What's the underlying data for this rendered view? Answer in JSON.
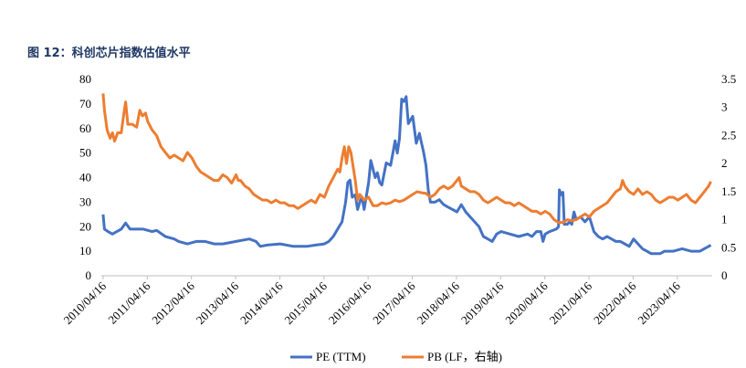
{
  "figure_caption": "图 12：科创芯片指数估值水平",
  "chart_data": {
    "type": "line",
    "y_left": {
      "ylim": [
        0,
        80
      ],
      "ticks": [
        "0",
        "10",
        "20",
        "30",
        "40",
        "50",
        "60",
        "70",
        "80"
      ]
    },
    "y_right": {
      "ylim": [
        0,
        3.5
      ],
      "ticks": [
        "0",
        "0.5",
        "1",
        "1.5",
        "2",
        "2.5",
        "3",
        "3.5"
      ]
    },
    "x_range": [
      2010.25,
      2024.08
    ],
    "x_ticks": [
      "2010/04/16",
      "2011/04/16",
      "2012/04/16",
      "2013/04/16",
      "2014/04/16",
      "2015/04/16",
      "2016/04/16",
      "2017/04/16",
      "2018/04/16",
      "2019/04/16",
      "2020/04/16",
      "2021/04/16",
      "2022/04/16",
      "2023/04/16"
    ],
    "colors": {
      "pe": "#4472c4",
      "pb": "#ed7d31"
    },
    "legend": [
      "PE (TTM)",
      "PB (LF，右轴)"
    ],
    "series": [
      {
        "name": "PE (TTM)",
        "axis": "left",
        "points": [
          [
            2010.29,
            25
          ],
          [
            2010.32,
            19
          ],
          [
            2010.4,
            18
          ],
          [
            2010.5,
            17
          ],
          [
            2010.6,
            18
          ],
          [
            2010.7,
            19
          ],
          [
            2010.8,
            21.5
          ],
          [
            2010.9,
            19
          ],
          [
            2011.0,
            19
          ],
          [
            2011.2,
            19
          ],
          [
            2011.4,
            18
          ],
          [
            2011.5,
            18.5
          ],
          [
            2011.7,
            16
          ],
          [
            2011.9,
            15
          ],
          [
            2012.0,
            14
          ],
          [
            2012.2,
            13
          ],
          [
            2012.4,
            14
          ],
          [
            2012.6,
            14
          ],
          [
            2012.8,
            13
          ],
          [
            2013.0,
            13
          ],
          [
            2013.3,
            14
          ],
          [
            2013.6,
            15
          ],
          [
            2013.75,
            14
          ],
          [
            2013.85,
            12
          ],
          [
            2014.0,
            12.5
          ],
          [
            2014.3,
            13
          ],
          [
            2014.6,
            12
          ],
          [
            2014.9,
            12
          ],
          [
            2015.1,
            12.5
          ],
          [
            2015.3,
            13
          ],
          [
            2015.4,
            14
          ],
          [
            2015.5,
            16
          ],
          [
            2015.6,
            19
          ],
          [
            2015.7,
            22
          ],
          [
            2015.78,
            30
          ],
          [
            2015.83,
            38
          ],
          [
            2015.88,
            39
          ],
          [
            2015.93,
            32
          ],
          [
            2016.0,
            33
          ],
          [
            2016.05,
            27
          ],
          [
            2016.1,
            30
          ],
          [
            2016.15,
            32
          ],
          [
            2016.2,
            27
          ],
          [
            2016.3,
            38
          ],
          [
            2016.35,
            47
          ],
          [
            2016.45,
            40
          ],
          [
            2016.5,
            42
          ],
          [
            2016.55,
            38
          ],
          [
            2016.6,
            37
          ],
          [
            2016.7,
            46
          ],
          [
            2016.8,
            45
          ],
          [
            2016.9,
            55
          ],
          [
            2016.95,
            50
          ],
          [
            2017.0,
            56
          ],
          [
            2017.05,
            72
          ],
          [
            2017.1,
            71
          ],
          [
            2017.15,
            73
          ],
          [
            2017.2,
            62
          ],
          [
            2017.3,
            65
          ],
          [
            2017.38,
            54
          ],
          [
            2017.45,
            58
          ],
          [
            2017.55,
            50
          ],
          [
            2017.6,
            45
          ],
          [
            2017.65,
            35
          ],
          [
            2017.7,
            30
          ],
          [
            2017.8,
            30
          ],
          [
            2017.9,
            31
          ],
          [
            2018.0,
            29
          ],
          [
            2018.1,
            28
          ],
          [
            2018.2,
            27
          ],
          [
            2018.3,
            26
          ],
          [
            2018.4,
            29
          ],
          [
            2018.5,
            26
          ],
          [
            2018.6,
            24
          ],
          [
            2018.7,
            22
          ],
          [
            2018.8,
            20
          ],
          [
            2018.9,
            16
          ],
          [
            2019.0,
            15
          ],
          [
            2019.1,
            14
          ],
          [
            2019.2,
            17
          ],
          [
            2019.3,
            18
          ],
          [
            2019.5,
            17
          ],
          [
            2019.7,
            16
          ],
          [
            2019.9,
            17
          ],
          [
            2020.0,
            16
          ],
          [
            2020.1,
            18
          ],
          [
            2020.2,
            18
          ],
          [
            2020.25,
            14
          ],
          [
            2020.3,
            17
          ],
          [
            2020.4,
            18
          ],
          [
            2020.55,
            19
          ],
          [
            2020.6,
            20
          ],
          [
            2020.62,
            35
          ],
          [
            2020.66,
            33
          ],
          [
            2020.7,
            34
          ],
          [
            2020.73,
            21
          ],
          [
            2020.8,
            21
          ],
          [
            2020.85,
            22
          ],
          [
            2020.9,
            21
          ],
          [
            2020.95,
            26
          ],
          [
            2021.0,
            23
          ],
          [
            2021.1,
            24
          ],
          [
            2021.2,
            22
          ],
          [
            2021.3,
            24
          ],
          [
            2021.4,
            18
          ],
          [
            2021.5,
            16
          ],
          [
            2021.6,
            15
          ],
          [
            2021.7,
            16
          ],
          [
            2021.8,
            15
          ],
          [
            2021.9,
            14
          ],
          [
            2022.0,
            14
          ],
          [
            2022.1,
            13
          ],
          [
            2022.2,
            12
          ],
          [
            2022.3,
            15
          ],
          [
            2022.4,
            13
          ],
          [
            2022.5,
            11
          ],
          [
            2022.6,
            10
          ],
          [
            2022.7,
            9
          ],
          [
            2022.8,
            9
          ],
          [
            2022.9,
            9
          ],
          [
            2023.0,
            10
          ],
          [
            2023.2,
            10
          ],
          [
            2023.4,
            11
          ],
          [
            2023.6,
            10
          ],
          [
            2023.8,
            10
          ],
          [
            2023.9,
            11
          ],
          [
            2024.0,
            12
          ],
          [
            2024.05,
            12.5
          ]
        ]
      },
      {
        "name": "PB (LF，右轴)",
        "axis": "right",
        "points": [
          [
            2010.29,
            3.25
          ],
          [
            2010.32,
            2.95
          ],
          [
            2010.38,
            2.6
          ],
          [
            2010.45,
            2.45
          ],
          [
            2010.5,
            2.55
          ],
          [
            2010.55,
            2.4
          ],
          [
            2010.62,
            2.55
          ],
          [
            2010.7,
            2.55
          ],
          [
            2010.76,
            2.9
          ],
          [
            2010.8,
            3.1
          ],
          [
            2010.85,
            2.7
          ],
          [
            2010.95,
            2.7
          ],
          [
            2011.05,
            2.65
          ],
          [
            2011.12,
            2.95
          ],
          [
            2011.18,
            2.85
          ],
          [
            2011.25,
            2.9
          ],
          [
            2011.3,
            2.75
          ],
          [
            2011.4,
            2.6
          ],
          [
            2011.5,
            2.5
          ],
          [
            2011.6,
            2.3
          ],
          [
            2011.7,
            2.2
          ],
          [
            2011.8,
            2.1
          ],
          [
            2011.9,
            2.15
          ],
          [
            2012.0,
            2.1
          ],
          [
            2012.1,
            2.05
          ],
          [
            2012.2,
            2.2
          ],
          [
            2012.3,
            2.1
          ],
          [
            2012.4,
            1.95
          ],
          [
            2012.5,
            1.85
          ],
          [
            2012.6,
            1.8
          ],
          [
            2012.7,
            1.75
          ],
          [
            2012.8,
            1.7
          ],
          [
            2012.9,
            1.7
          ],
          [
            2013.0,
            1.8
          ],
          [
            2013.1,
            1.75
          ],
          [
            2013.2,
            1.65
          ],
          [
            2013.3,
            1.8
          ],
          [
            2013.35,
            1.7
          ],
          [
            2013.4,
            1.7
          ],
          [
            2013.5,
            1.6
          ],
          [
            2013.6,
            1.55
          ],
          [
            2013.7,
            1.45
          ],
          [
            2013.8,
            1.4
          ],
          [
            2013.9,
            1.35
          ],
          [
            2014.0,
            1.35
          ],
          [
            2014.1,
            1.3
          ],
          [
            2014.2,
            1.35
          ],
          [
            2014.3,
            1.3
          ],
          [
            2014.4,
            1.3
          ],
          [
            2014.5,
            1.25
          ],
          [
            2014.6,
            1.25
          ],
          [
            2014.7,
            1.2
          ],
          [
            2014.8,
            1.25
          ],
          [
            2014.9,
            1.3
          ],
          [
            2015.0,
            1.35
          ],
          [
            2015.1,
            1.3
          ],
          [
            2015.2,
            1.45
          ],
          [
            2015.3,
            1.4
          ],
          [
            2015.4,
            1.6
          ],
          [
            2015.5,
            1.75
          ],
          [
            2015.6,
            1.9
          ],
          [
            2015.65,
            1.85
          ],
          [
            2015.7,
            2.1
          ],
          [
            2015.75,
            2.3
          ],
          [
            2015.8,
            2.0
          ],
          [
            2015.85,
            2.3
          ],
          [
            2015.9,
            2.2
          ],
          [
            2015.95,
            1.95
          ],
          [
            2016.0,
            1.7
          ],
          [
            2016.05,
            1.35
          ],
          [
            2016.1,
            1.45
          ],
          [
            2016.2,
            1.35
          ],
          [
            2016.3,
            1.4
          ],
          [
            2016.4,
            1.25
          ],
          [
            2016.5,
            1.25
          ],
          [
            2016.6,
            1.3
          ],
          [
            2016.7,
            1.28
          ],
          [
            2016.8,
            1.3
          ],
          [
            2016.9,
            1.35
          ],
          [
            2017.0,
            1.32
          ],
          [
            2017.1,
            1.35
          ],
          [
            2017.2,
            1.4
          ],
          [
            2017.3,
            1.45
          ],
          [
            2017.4,
            1.5
          ],
          [
            2017.5,
            1.48
          ],
          [
            2017.6,
            1.47
          ],
          [
            2017.7,
            1.4
          ],
          [
            2017.8,
            1.45
          ],
          [
            2017.9,
            1.55
          ],
          [
            2018.0,
            1.6
          ],
          [
            2018.1,
            1.55
          ],
          [
            2018.2,
            1.6
          ],
          [
            2018.3,
            1.7
          ],
          [
            2018.35,
            1.75
          ],
          [
            2018.4,
            1.6
          ],
          [
            2018.5,
            1.55
          ],
          [
            2018.6,
            1.5
          ],
          [
            2018.7,
            1.5
          ],
          [
            2018.8,
            1.45
          ],
          [
            2018.9,
            1.35
          ],
          [
            2019.0,
            1.3
          ],
          [
            2019.1,
            1.35
          ],
          [
            2019.2,
            1.4
          ],
          [
            2019.3,
            1.35
          ],
          [
            2019.4,
            1.3
          ],
          [
            2019.5,
            1.3
          ],
          [
            2019.6,
            1.25
          ],
          [
            2019.7,
            1.3
          ],
          [
            2019.8,
            1.25
          ],
          [
            2019.9,
            1.2
          ],
          [
            2020.0,
            1.15
          ],
          [
            2020.1,
            1.15
          ],
          [
            2020.2,
            1.1
          ],
          [
            2020.3,
            1.15
          ],
          [
            2020.4,
            1.1
          ],
          [
            2020.5,
            1.0
          ],
          [
            2020.6,
            0.95
          ],
          [
            2020.7,
            0.95
          ],
          [
            2020.8,
            1.0
          ],
          [
            2020.9,
            0.98
          ],
          [
            2021.0,
            1.0
          ],
          [
            2021.1,
            1.05
          ],
          [
            2021.2,
            1.1
          ],
          [
            2021.3,
            1.05
          ],
          [
            2021.4,
            1.15
          ],
          [
            2021.5,
            1.2
          ],
          [
            2021.6,
            1.25
          ],
          [
            2021.7,
            1.3
          ],
          [
            2021.8,
            1.4
          ],
          [
            2021.9,
            1.5
          ],
          [
            2022.0,
            1.55
          ],
          [
            2022.05,
            1.7
          ],
          [
            2022.1,
            1.6
          ],
          [
            2022.2,
            1.5
          ],
          [
            2022.3,
            1.45
          ],
          [
            2022.4,
            1.55
          ],
          [
            2022.5,
            1.45
          ],
          [
            2022.6,
            1.5
          ],
          [
            2022.7,
            1.45
          ],
          [
            2022.8,
            1.35
          ],
          [
            2022.9,
            1.3
          ],
          [
            2023.0,
            1.35
          ],
          [
            2023.1,
            1.4
          ],
          [
            2023.2,
            1.4
          ],
          [
            2023.3,
            1.35
          ],
          [
            2023.4,
            1.4
          ],
          [
            2023.5,
            1.45
          ],
          [
            2023.6,
            1.35
          ],
          [
            2023.7,
            1.3
          ],
          [
            2023.8,
            1.4
          ],
          [
            2023.85,
            1.45
          ],
          [
            2023.9,
            1.5
          ],
          [
            2023.95,
            1.55
          ],
          [
            2024.0,
            1.6
          ],
          [
            2024.05,
            1.68
          ]
        ]
      }
    ]
  }
}
